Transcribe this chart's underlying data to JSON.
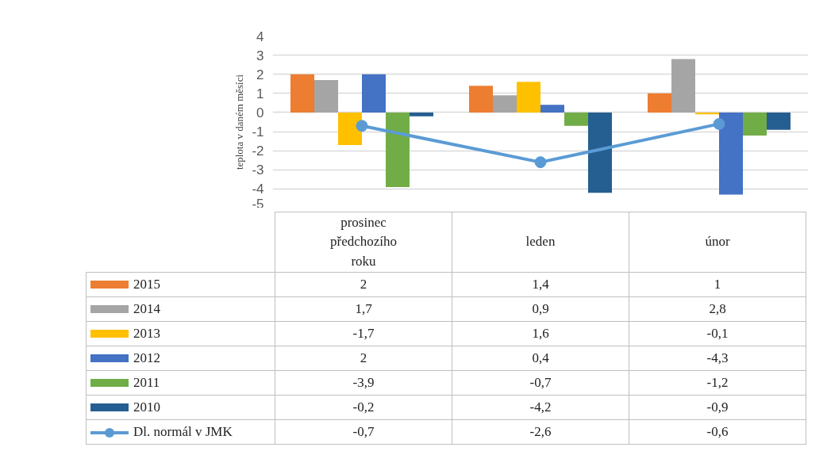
{
  "chart_data": {
    "type": "bar",
    "ylabel": "teplota v daném měsíci",
    "categories": [
      "prosinec předchozího roku",
      "leden",
      "únor"
    ],
    "series": [
      {
        "name": "2015",
        "color": "#ed7d31",
        "values": [
          2,
          1.4,
          1
        ],
        "value_labels": [
          "2",
          "1,4",
          "1"
        ]
      },
      {
        "name": "2014",
        "color": "#a5a5a5",
        "values": [
          1.7,
          0.9,
          2.8
        ],
        "value_labels": [
          "1,7",
          "0,9",
          "2,8"
        ]
      },
      {
        "name": "2013",
        "color": "#ffc000",
        "values": [
          -1.7,
          1.6,
          -0.1
        ],
        "value_labels": [
          "-1,7",
          "1,6",
          "-0,1"
        ]
      },
      {
        "name": "2012",
        "color": "#4472c4",
        "values": [
          2,
          0.4,
          -4.3
        ],
        "value_labels": [
          "2",
          "0,4",
          "-4,3"
        ]
      },
      {
        "name": "2011",
        "color": "#70ad47",
        "values": [
          -3.9,
          -0.7,
          -1.2
        ],
        "value_labels": [
          "-3,9",
          "-0,7",
          "-1,2"
        ]
      },
      {
        "name": "2010",
        "color": "#255e91",
        "values": [
          -0.2,
          -4.2,
          -0.9
        ],
        "value_labels": [
          "-0,2",
          "-4,2",
          "-0,9"
        ]
      },
      {
        "name": "Dl. normál v JMK",
        "color": "#5b9bd5",
        "type": "line",
        "marker": "circle",
        "values": [
          -0.7,
          -2.6,
          -0.6
        ],
        "value_labels": [
          "-0,7",
          "-2,6",
          "-0,6"
        ]
      }
    ],
    "ylim": [
      -5,
      4
    ],
    "yticks": [
      -5,
      -4,
      -3,
      -2,
      -1,
      0,
      1,
      2,
      3,
      4
    ],
    "grid": "y",
    "legend": "bottom"
  }
}
